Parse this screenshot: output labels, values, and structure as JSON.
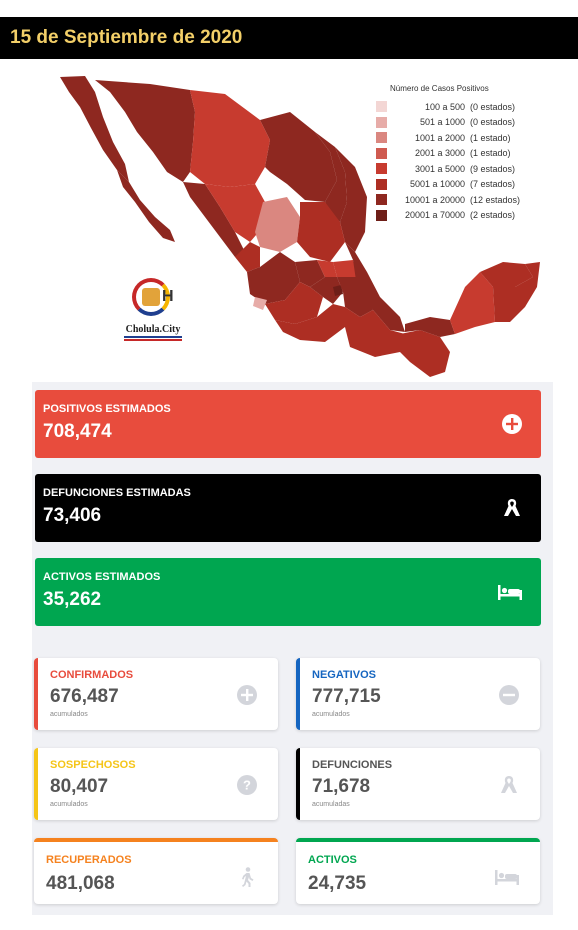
{
  "header": {
    "date": "15 de Septiembre de 2020"
  },
  "legend": {
    "title": "Número de Casos Positivos",
    "items": [
      {
        "range": "100 a 500",
        "count": "(0 estados)",
        "color": "#f3d6d4"
      },
      {
        "range": "501 a 1000",
        "count": "(0 estados)",
        "color": "#e7aca8"
      },
      {
        "range": "1001 a 2000",
        "count": "(1 estado)",
        "color": "#da8780"
      },
      {
        "range": "2001 a 3000",
        "count": "(1 estado)",
        "color": "#cf5a50"
      },
      {
        "range": "3001 a 5000",
        "count": "(9 estados)",
        "color": "#c73b2f"
      },
      {
        "range": "5001 a 10000",
        "count": "(7 estados)",
        "color": "#ad2e23"
      },
      {
        "range": "10001 a 20000",
        "count": "(12 estados)",
        "color": "#8e2820"
      },
      {
        "range": "20001 a 70000",
        "count": "(2 estados)",
        "color": "#6e1e18"
      }
    ]
  },
  "logo": {
    "text": "Cholula.City"
  },
  "estimates": {
    "positivos": {
      "label": "POSITIVOS ESTIMADOS",
      "value": "708,474",
      "icon": "plus-circle-icon",
      "color": "#e84c3d"
    },
    "defunciones": {
      "label": "DEFUNCIONES ESTIMADAS",
      "value": "73,406",
      "icon": "ribbon-icon",
      "color": "#000000"
    },
    "activos": {
      "label": "ACTIVOS ESTIMADOS",
      "value": "35,262",
      "icon": "bed-icon",
      "color": "#00a650"
    }
  },
  "cards": {
    "confirmados": {
      "label": "CONFIRMADOS",
      "value": "676,487",
      "sub": "acumulados",
      "icon": "plus-circle-icon",
      "color": "#e84c3d"
    },
    "negativos": {
      "label": "NEGATIVOS",
      "value": "777,715",
      "sub": "acumulados",
      "icon": "minus-circle-icon",
      "color": "#1565c0"
    },
    "sospechosos": {
      "label": "SOSPECHOSOS",
      "value": "80,407",
      "sub": "acumulados",
      "icon": "question-circle-icon",
      "color": "#f5c518"
    },
    "defunciones": {
      "label": "DEFUNCIONES",
      "value": "71,678",
      "sub": "acumuladas",
      "icon": "ribbon-icon",
      "color": "#000000"
    },
    "recuperados": {
      "label": "RECUPERADOS",
      "value": "481,068",
      "icon": "walking-icon",
      "color": "#f5821f"
    },
    "activos": {
      "label": "ACTIVOS",
      "value": "24,735",
      "icon": "bed-icon",
      "color": "#00a650"
    }
  }
}
